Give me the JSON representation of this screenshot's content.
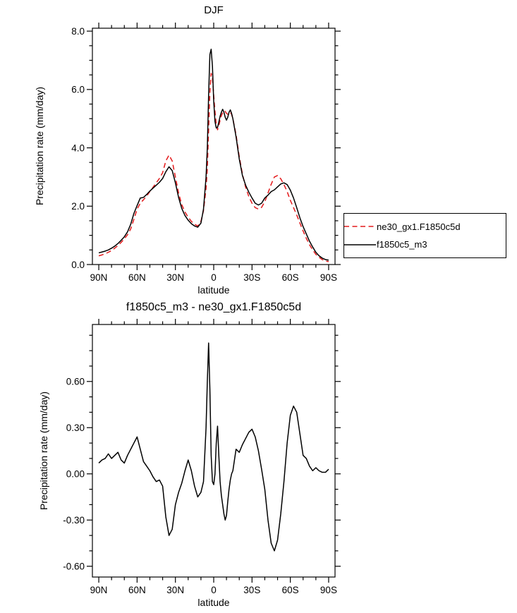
{
  "colors": {
    "background": "#ffffff",
    "axis": "#000000",
    "series_red": "#e41a1c",
    "series_black": "#000000"
  },
  "chart_data": [
    {
      "type": "line",
      "title": "DJF",
      "xlabel": "latitude",
      "ylabel": "Precipitation rate (mm/day)",
      "xlim": [
        95,
        -95
      ],
      "ylim": [
        0,
        8.1
      ],
      "grid": false,
      "xticks": {
        "values": [
          90,
          60,
          30,
          0,
          -30,
          -60,
          -90
        ],
        "labels": [
          "90N",
          "60N",
          "30N",
          "0",
          "30S",
          "60S",
          "90S"
        ],
        "minor_step": 10
      },
      "yticks": {
        "values": [
          0,
          2,
          4,
          6,
          8
        ],
        "labels": [
          "0.0",
          "2.0",
          "4.0",
          "6.0",
          "8.0"
        ],
        "minor_step": 0.5
      },
      "x": [
        90,
        87.5,
        85,
        82.5,
        80,
        77.5,
        75,
        72.5,
        70,
        67.5,
        65,
        62.5,
        60,
        57.5,
        55,
        52.5,
        50,
        47.5,
        45,
        42.5,
        40,
        37.5,
        35,
        32.5,
        30,
        27.5,
        25,
        22.5,
        20,
        17.5,
        15,
        12.5,
        10,
        8,
        6,
        5,
        4,
        3,
        2,
        1,
        0,
        -1,
        -2,
        -3,
        -4,
        -5,
        -6,
        -7,
        -8,
        -9,
        -10,
        -11,
        -12,
        -13,
        -14,
        -15,
        -17.5,
        -20,
        -22.5,
        -25,
        -27.5,
        -30,
        -32.5,
        -35,
        -37.5,
        -40,
        -42.5,
        -45,
        -47.5,
        -50,
        -52.5,
        -55,
        -57.5,
        -60,
        -62.5,
        -65,
        -67.5,
        -70,
        -72.5,
        -75,
        -77.5,
        -80,
        -82.5,
        -85,
        -87.5,
        -90
      ],
      "series": [
        {
          "name": "ne30_gx1.F1850c5d",
          "color": "#e41a1c",
          "style": "dashed",
          "values": [
            0.3,
            0.33,
            0.37,
            0.42,
            0.48,
            0.56,
            0.65,
            0.76,
            0.88,
            1.02,
            1.22,
            1.55,
            1.9,
            2.1,
            2.22,
            2.35,
            2.5,
            2.65,
            2.8,
            2.95,
            3.15,
            3.55,
            3.75,
            3.55,
            3.0,
            2.45,
            2.05,
            1.8,
            1.62,
            1.48,
            1.38,
            1.32,
            1.48,
            1.85,
            2.6,
            3.3,
            4.6,
            5.9,
            6.55,
            6.4,
            5.8,
            5.25,
            4.8,
            4.62,
            4.75,
            4.95,
            5.1,
            5.2,
            5.27,
            5.25,
            5.18,
            5.15,
            5.18,
            5.22,
            5.15,
            5.0,
            4.45,
            3.7,
            3.1,
            2.65,
            2.33,
            2.1,
            1.95,
            1.9,
            1.96,
            2.15,
            2.45,
            2.75,
            3.0,
            3.05,
            2.94,
            2.74,
            2.5,
            2.2,
            1.95,
            1.7,
            1.42,
            1.15,
            0.9,
            0.68,
            0.5,
            0.35,
            0.25,
            0.17,
            0.12,
            0.1
          ]
        },
        {
          "name": "f1850c5_m3",
          "color": "#000000",
          "style": "solid",
          "values": [
            0.4,
            0.43,
            0.46,
            0.5,
            0.56,
            0.63,
            0.72,
            0.83,
            0.95,
            1.12,
            1.38,
            1.75,
            2.02,
            2.28,
            2.3,
            2.4,
            2.52,
            2.62,
            2.72,
            2.82,
            2.95,
            3.18,
            3.35,
            3.22,
            2.8,
            2.3,
            1.92,
            1.68,
            1.52,
            1.4,
            1.32,
            1.28,
            1.42,
            1.9,
            3.0,
            4.0,
            5.8,
            7.2,
            7.38,
            6.8,
            5.6,
            4.9,
            4.68,
            4.7,
            4.88,
            5.08,
            5.22,
            5.32,
            5.22,
            5.05,
            4.95,
            5.05,
            5.22,
            5.3,
            5.18,
            5.0,
            4.38,
            3.62,
            3.05,
            2.72,
            2.48,
            2.28,
            2.1,
            2.04,
            2.1,
            2.28,
            2.38,
            2.5,
            2.56,
            2.66,
            2.76,
            2.8,
            2.74,
            2.55,
            2.28,
            1.95,
            1.6,
            1.3,
            1.05,
            0.8,
            0.6,
            0.42,
            0.3,
            0.22,
            0.17,
            0.15
          ]
        }
      ],
      "legend": {
        "position": "right-of-plot",
        "border": true
      }
    },
    {
      "type": "line",
      "title": "f1850c5_m3 - ne30_gx1.F1850c5d",
      "xlabel": "latitude",
      "ylabel": "Precipitation rate (mm/day)",
      "xlim": [
        95,
        -95
      ],
      "ylim": [
        -0.67,
        0.97
      ],
      "grid": false,
      "xticks": {
        "values": [
          90,
          60,
          30,
          0,
          -30,
          -60,
          -90
        ],
        "labels": [
          "90N",
          "60N",
          "30N",
          "0",
          "30S",
          "60S",
          "90S"
        ],
        "minor_step": 10
      },
      "yticks": {
        "values": [
          -0.6,
          -0.3,
          0,
          0.3,
          0.6
        ],
        "labels": [
          "-0.60",
          "-0.30",
          "0.00",
          "0.30",
          "0.60"
        ],
        "minor_step": 0.1
      },
      "x": [
        90,
        87.5,
        85,
        82.5,
        80,
        77.5,
        75,
        72.5,
        70,
        67.5,
        65,
        62.5,
        60,
        57.5,
        55,
        52.5,
        50,
        47.5,
        45,
        42.5,
        40,
        37.5,
        35,
        32.5,
        30,
        27.5,
        25,
        22.5,
        20,
        17.5,
        15,
        12.5,
        10,
        8,
        6,
        5,
        4,
        3,
        2,
        1,
        0,
        -1,
        -2,
        -3,
        -4,
        -5,
        -6,
        -7,
        -8,
        -9,
        -10,
        -11,
        -12,
        -13,
        -14,
        -15,
        -17.5,
        -20,
        -22.5,
        -25,
        -27.5,
        -30,
        -32.5,
        -35,
        -37.5,
        -40,
        -42.5,
        -45,
        -47.5,
        -50,
        -52.5,
        -55,
        -57.5,
        -60,
        -62.5,
        -65,
        -67.5,
        -70,
        -72.5,
        -75,
        -77.5,
        -80,
        -82.5,
        -85,
        -87.5,
        -90
      ],
      "series": [
        {
          "name": "f1850c5_m3 - ne30_gx1.F1850c5d",
          "color": "#000000",
          "style": "solid",
          "values": [
            0.07,
            0.09,
            0.1,
            0.13,
            0.1,
            0.12,
            0.14,
            0.09,
            0.07,
            0.12,
            0.16,
            0.2,
            0.24,
            0.16,
            0.08,
            0.05,
            0.02,
            -0.02,
            -0.05,
            -0.04,
            -0.08,
            -0.28,
            -0.4,
            -0.36,
            -0.2,
            -0.12,
            -0.06,
            0.02,
            0.09,
            0.02,
            -0.08,
            -0.15,
            -0.12,
            -0.05,
            0.3,
            0.6,
            0.85,
            0.55,
            0.12,
            -0.05,
            -0.07,
            0.0,
            0.2,
            0.31,
            0.12,
            -0.05,
            -0.14,
            -0.2,
            -0.26,
            -0.3,
            -0.27,
            -0.18,
            -0.1,
            -0.04,
            0.0,
            0.02,
            0.16,
            0.14,
            0.19,
            0.23,
            0.27,
            0.29,
            0.24,
            0.15,
            0.03,
            -0.1,
            -0.3,
            -0.45,
            -0.5,
            -0.43,
            -0.26,
            -0.05,
            0.2,
            0.38,
            0.44,
            0.4,
            0.26,
            0.12,
            0.1,
            0.05,
            0.02,
            0.04,
            0.02,
            0.01,
            0.01,
            0.03
          ]
        }
      ]
    }
  ]
}
